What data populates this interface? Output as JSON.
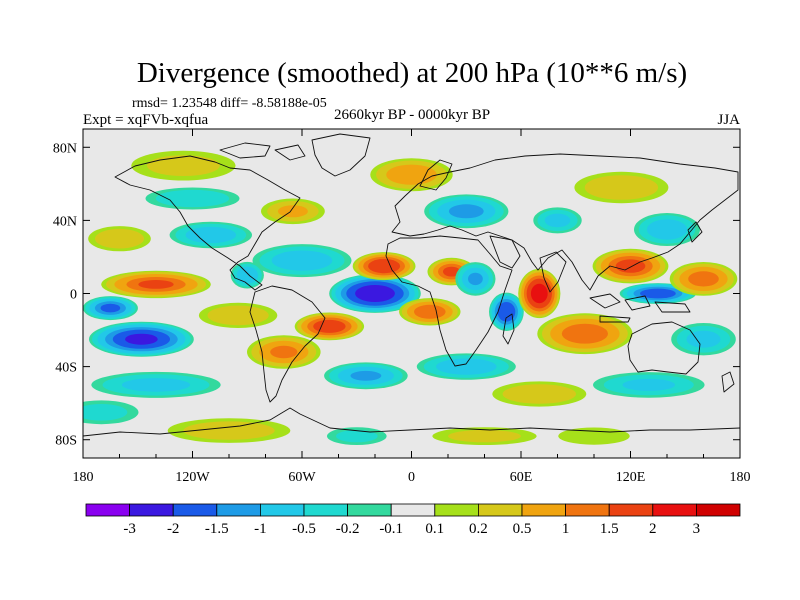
{
  "chart_data": {
    "type": "heatmap",
    "title": "Divergence (smoothed) at 200 hPa (10**6 m/s)",
    "stats_line": "rmsd= 1.23548 diff= -8.58188e-05",
    "experiment": "Expt = xqFVb-xqfua",
    "period": "2660kyr BP - 0000kyr BP",
    "season": "JJA",
    "x_ticks": [
      "180",
      "120W",
      "60W",
      "0",
      "60E",
      "120E",
      "180"
    ],
    "x_tick_values": [
      -180,
      -120,
      -60,
      0,
      60,
      120,
      180
    ],
    "y_ticks": [
      "80N",
      "40N",
      "0",
      "40S",
      "80S"
    ],
    "y_tick_values": [
      80,
      40,
      0,
      -40,
      -80
    ],
    "xlim": [
      -180,
      180
    ],
    "ylim": [
      -90,
      90
    ],
    "colorbar": {
      "labels": [
        "-3",
        "-2",
        "-1.5",
        "-1",
        "-0.5",
        "-0.2",
        "-0.1",
        "0.1",
        "0.2",
        "0.5",
        "1",
        "1.5",
        "2",
        "3"
      ],
      "colors": [
        "#8a00f0",
        "#3b18e0",
        "#1a5ae8",
        "#1e9be6",
        "#22c8e8",
        "#1fd9d0",
        "#33d99e",
        "#e8e8e8",
        "#a6e01a",
        "#d6c81a",
        "#f0a410",
        "#f07410",
        "#ea4212",
        "#e81010",
        "#d00000"
      ]
    },
    "blobs": [
      {
        "lon": -20,
        "lat": 0,
        "v": -3.2,
        "rx": 26,
        "ry": 11
      },
      {
        "lon": -148,
        "lat": -25,
        "v": -2.6,
        "rx": 30,
        "ry": 10
      },
      {
        "lon": 135,
        "lat": 0,
        "v": -2.2,
        "rx": 22,
        "ry": 6
      },
      {
        "lon": 52,
        "lat": -10,
        "v": -2.4,
        "rx": 10,
        "ry": 11
      },
      {
        "lon": -165,
        "lat": -8,
        "v": -1.8,
        "rx": 16,
        "ry": 7
      },
      {
        "lon": -140,
        "lat": 5,
        "v": 1.7,
        "rx": 32,
        "ry": 8
      },
      {
        "lon": -15,
        "lat": 15,
        "v": 2.4,
        "rx": 18,
        "ry": 8
      },
      {
        "lon": 22,
        "lat": 12,
        "v": 1.8,
        "rx": 14,
        "ry": 8
      },
      {
        "lon": 70,
        "lat": 0,
        "v": 3.0,
        "rx": 12,
        "ry": 14
      },
      {
        "lon": 120,
        "lat": 15,
        "v": 1.9,
        "rx": 22,
        "ry": 10
      },
      {
        "lon": 160,
        "lat": 8,
        "v": 1.4,
        "rx": 20,
        "ry": 10
      },
      {
        "lon": -45,
        "lat": -18,
        "v": 2.2,
        "rx": 20,
        "ry": 8
      },
      {
        "lon": 10,
        "lat": -10,
        "v": 1.6,
        "rx": 18,
        "ry": 8
      },
      {
        "lon": 95,
        "lat": -22,
        "v": 1.5,
        "rx": 28,
        "ry": 12
      },
      {
        "lon": -70,
        "lat": -32,
        "v": 1.2,
        "rx": 22,
        "ry": 10
      },
      {
        "lon": -95,
        "lat": -12,
        "v": 0.6,
        "rx": 25,
        "ry": 8
      },
      {
        "lon": 35,
        "lat": 8,
        "v": -1.2,
        "rx": 12,
        "ry": 10
      },
      {
        "lon": -60,
        "lat": 18,
        "v": -1.0,
        "rx": 30,
        "ry": 10
      },
      {
        "lon": -110,
        "lat": 32,
        "v": -1.0,
        "rx": 25,
        "ry": 8
      },
      {
        "lon": -160,
        "lat": 30,
        "v": 0.6,
        "rx": 20,
        "ry": 8
      },
      {
        "lon": -120,
        "lat": 52,
        "v": -0.6,
        "rx": 30,
        "ry": 7
      },
      {
        "lon": -125,
        "lat": 70,
        "v": 0.4,
        "rx": 35,
        "ry": 10
      },
      {
        "lon": 30,
        "lat": 45,
        "v": -1.3,
        "rx": 25,
        "ry": 10
      },
      {
        "lon": 0,
        "lat": 65,
        "v": 1.0,
        "rx": 25,
        "ry": 10
      },
      {
        "lon": 115,
        "lat": 58,
        "v": 0.6,
        "rx": 30,
        "ry": 10
      },
      {
        "lon": 140,
        "lat": 35,
        "v": -1.0,
        "rx": 20,
        "ry": 10
      },
      {
        "lon": 80,
        "lat": 40,
        "v": -0.8,
        "rx": 15,
        "ry": 8
      },
      {
        "lon": -65,
        "lat": 45,
        "v": 0.7,
        "rx": 20,
        "ry": 8
      },
      {
        "lon": -140,
        "lat": -50,
        "v": -0.8,
        "rx": 40,
        "ry": 8
      },
      {
        "lon": 30,
        "lat": -40,
        "v": -1.0,
        "rx": 30,
        "ry": 8
      },
      {
        "lon": -25,
        "lat": -45,
        "v": -1.2,
        "rx": 25,
        "ry": 8
      },
      {
        "lon": 130,
        "lat": -50,
        "v": -0.7,
        "rx": 35,
        "ry": 8
      },
      {
        "lon": 70,
        "lat": -55,
        "v": 0.6,
        "rx": 30,
        "ry": 8
      },
      {
        "lon": -170,
        "lat": -65,
        "v": -0.4,
        "rx": 25,
        "ry": 8
      },
      {
        "lon": -100,
        "lat": -75,
        "v": 0.5,
        "rx": 40,
        "ry": 8
      },
      {
        "lon": 40,
        "lat": -78,
        "v": 0.4,
        "rx": 35,
        "ry": 6
      },
      {
        "lon": 100,
        "lat": -78,
        "v": 0.3,
        "rx": 25,
        "ry": 6
      },
      {
        "lon": -30,
        "lat": -78,
        "v": -0.4,
        "rx": 20,
        "ry": 6
      },
      {
        "lon": -90,
        "lat": 10,
        "v": -1.1,
        "rx": 10,
        "ry": 8
      },
      {
        "lon": 160,
        "lat": -25,
        "v": -0.8,
        "rx": 20,
        "ry": 10
      }
    ]
  }
}
